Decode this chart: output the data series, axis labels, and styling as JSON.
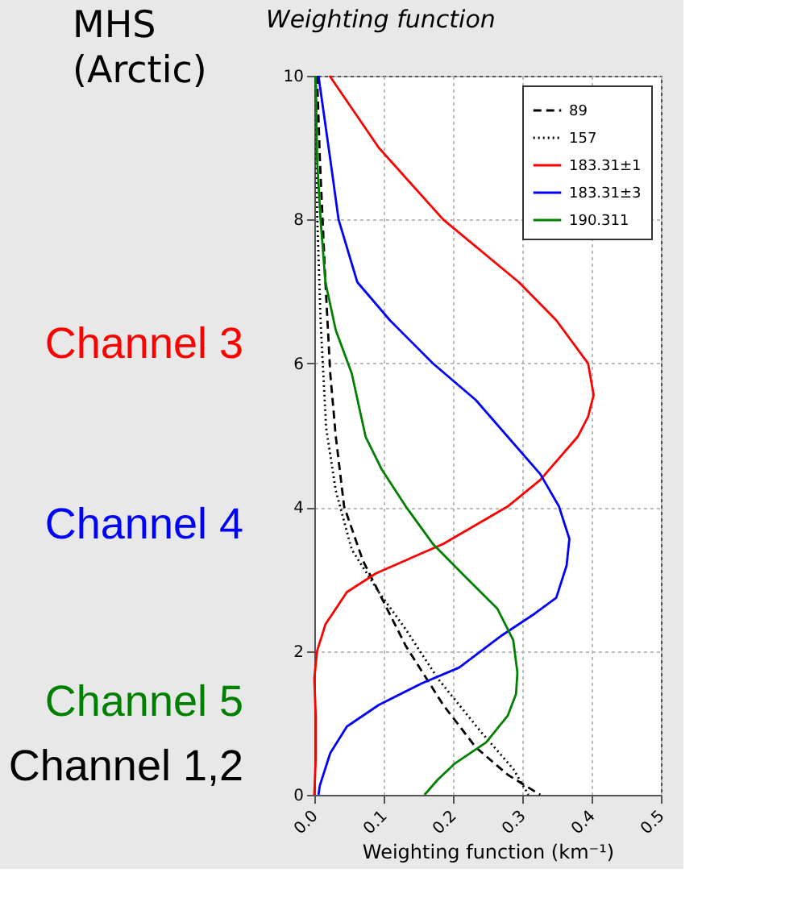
{
  "chart_data": {
    "type": "line",
    "title": "Weighting function",
    "xlabel": "Weighting function (km⁻¹)",
    "xlim": [
      0,
      0.5
    ],
    "ylim": [
      0,
      10
    ],
    "xticks": [
      {
        "value": 0,
        "label": "0.0"
      },
      {
        "value": 0.1,
        "label": "0.1"
      },
      {
        "value": 0.2,
        "label": "0.2"
      },
      {
        "value": 0.3,
        "label": "0.3"
      },
      {
        "value": 0.4,
        "label": "0.4"
      },
      {
        "value": 0.5,
        "label": "0.5"
      }
    ],
    "yticks": [
      0,
      2,
      4,
      6,
      8,
      10
    ],
    "grid": true,
    "legend": "top right",
    "marker": "none",
    "annotations": [
      "MHS (Arctic)",
      "Channel 3",
      "Channel 4",
      "Channel 5",
      "Channel 1,2"
    ],
    "series": [
      {
        "name": "89",
        "color": "#000000",
        "line_style": "dashed",
        "x": [
          0.004,
          0.008,
          0.016,
          0.023,
          0.031,
          0.043,
          0.07,
          0.097,
          0.132,
          0.186,
          0.233,
          0.279,
          0.326
        ],
        "values": [
          10,
          8.84,
          7.13,
          5.86,
          4.98,
          4.01,
          3.26,
          2.74,
          2.07,
          1.25,
          0.66,
          0.28,
          0
        ]
      },
      {
        "name": "157",
        "color": "#000000",
        "line_style": "dotted",
        "x": [
          0.002,
          0.004,
          0.009,
          0.017,
          0.019,
          0.031,
          0.054,
          0.093,
          0.132,
          0.178,
          0.24,
          0.287,
          0.309
        ],
        "values": [
          10,
          8.1,
          6.6,
          5.11,
          4.98,
          4.23,
          3.41,
          2.82,
          2.3,
          1.62,
          0.88,
          0.36,
          0
        ]
      },
      {
        "name": "183.31±1",
        "color": "#ff0000",
        "line_style": "solid",
        "x": [
          0.022,
          0.093,
          0.186,
          0.295,
          0.349,
          0.395,
          0.403,
          0.395,
          0.38,
          0.326,
          0.279,
          0.186,
          0.089,
          0.047,
          0.016,
          0.004,
          0,
          0.002,
          0.002,
          0
        ],
        "values": [
          10,
          9,
          8,
          7.13,
          6.6,
          6,
          5.56,
          5.26,
          4.98,
          4.38,
          4.01,
          3.49,
          3.08,
          2.82,
          2.37,
          2,
          1.62,
          1.1,
          0.5,
          0
        ]
      },
      {
        "name": "183.31±3",
        "color": "#0000ff",
        "line_style": "solid",
        "x": [
          0.006,
          0.023,
          0.035,
          0.062,
          0.109,
          0.171,
          0.233,
          0.279,
          0.326,
          0.353,
          0.368,
          0.364,
          0.349,
          0.318,
          0.271,
          0.209,
          0.155,
          0.093,
          0.047,
          0.023,
          0.008,
          0.006
        ],
        "values": [
          10,
          8.84,
          8,
          7.13,
          6.6,
          6,
          5.49,
          4.98,
          4.46,
          4.01,
          3.56,
          3.19,
          2.74,
          2.52,
          2.22,
          1.77,
          1.55,
          1.25,
          0.95,
          0.58,
          0.13,
          0
        ]
      },
      {
        "name": "190.311",
        "color": "#008000",
        "line_style": "solid",
        "x": [
          0.002,
          0.004,
          0.009,
          0.016,
          0.031,
          0.054,
          0.074,
          0.097,
          0.132,
          0.171,
          0.217,
          0.264,
          0.287,
          0.293,
          0.291,
          0.279,
          0.248,
          0.202,
          0.178,
          0.159
        ],
        "values": [
          10,
          8.84,
          8,
          7.13,
          6.46,
          5.86,
          4.98,
          4.53,
          4.01,
          3.49,
          3.04,
          2.59,
          2.15,
          1.7,
          1.4,
          1.1,
          0.73,
          0.43,
          0.21,
          0
        ]
      }
    ]
  }
}
